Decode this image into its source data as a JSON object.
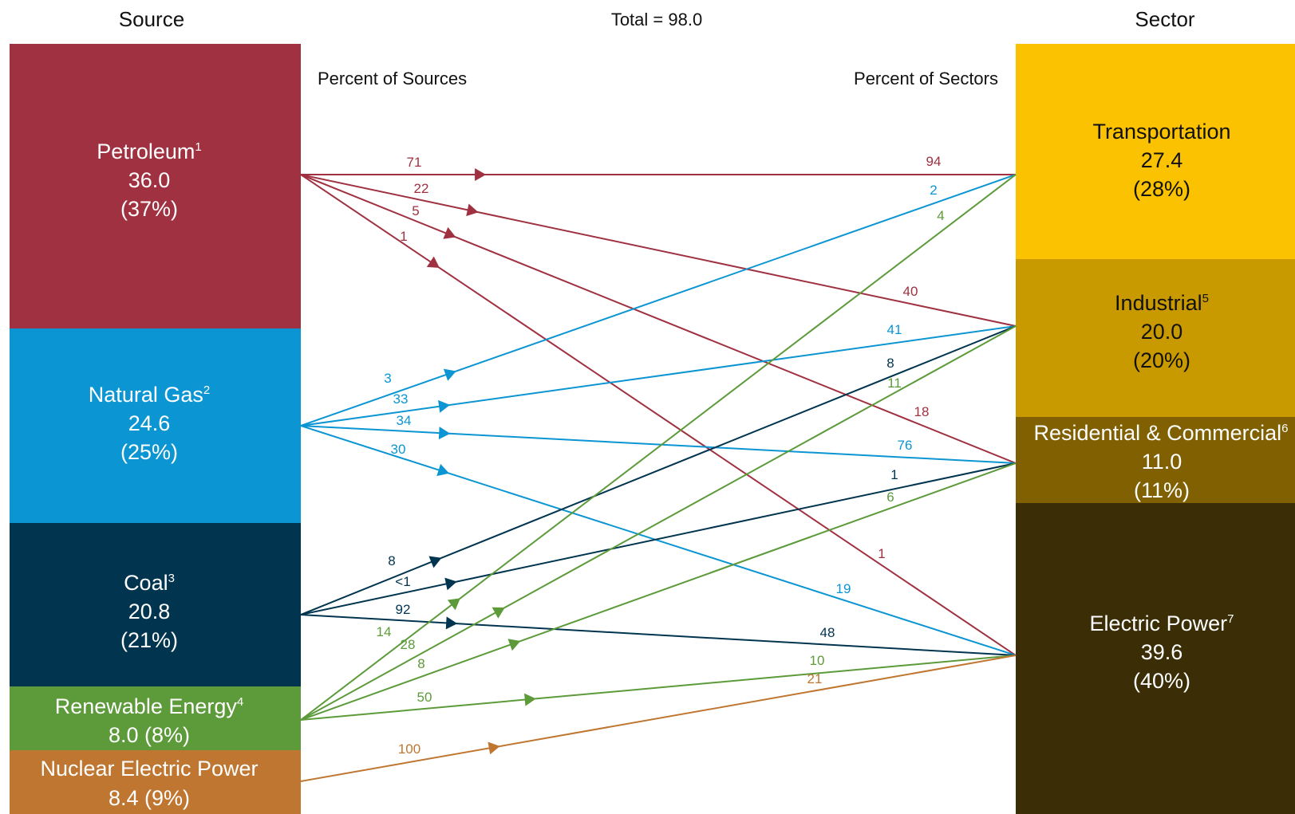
{
  "header": {
    "source_title": "Source",
    "total": "Total = 98.0",
    "sector_title": "Sector",
    "pct_sources": "Percent of Sources",
    "pct_sectors": "Percent of Sectors"
  },
  "colors": {
    "petroleum": "#a03141",
    "natural_gas": "#0b95d2",
    "coal": "#00344f",
    "renewable": "#5c9a3a",
    "nuclear": "#bf7630",
    "transportation": "#fac200",
    "industrial": "#c99a00",
    "residential_commercial": "#806000",
    "electric_power": "#3b2e06"
  },
  "sources": [
    {
      "id": "petroleum",
      "name": "Petroleum",
      "sup": "1",
      "value": "36.0",
      "pct": "(37%)"
    },
    {
      "id": "natural_gas",
      "name": "Natural Gas",
      "sup": "2",
      "value": "24.6",
      "pct": "(25%)"
    },
    {
      "id": "coal",
      "name": "Coal",
      "sup": "3",
      "value": "20.8",
      "pct": "(21%)"
    },
    {
      "id": "renewable",
      "name": "Renewable Energy",
      "sup": "4",
      "value_line": "8.0 (8%)"
    },
    {
      "id": "nuclear",
      "name": "Nuclear Electric Power",
      "sup": "",
      "value_line": "8.4 (9%)"
    }
  ],
  "sectors": [
    {
      "id": "transportation",
      "name": "Transportation",
      "sup": "",
      "value": "27.4",
      "pct": "(28%)"
    },
    {
      "id": "industrial",
      "name": "Industrial",
      "sup": "5",
      "value": "20.0",
      "pct": "(20%)"
    },
    {
      "id": "residential_commercial",
      "name": "Residential & Commercial",
      "sup": "6",
      "value": "11.0",
      "pct": "(11%)"
    },
    {
      "id": "electric_power",
      "name": "Electric Power",
      "sup": "7",
      "value": "39.6",
      "pct": "(40%)"
    }
  ],
  "flows": [
    {
      "source": "petroleum",
      "sector": "transportation",
      "src_label": "71",
      "sec_label": "94"
    },
    {
      "source": "petroleum",
      "sector": "industrial",
      "src_label": "22",
      "sec_label": "40"
    },
    {
      "source": "petroleum",
      "sector": "residential_commercial",
      "src_label": "5",
      "sec_label": "18"
    },
    {
      "source": "petroleum",
      "sector": "electric_power",
      "src_label": "1",
      "sec_label": "1"
    },
    {
      "source": "natural_gas",
      "sector": "transportation",
      "src_label": "3",
      "sec_label": "2"
    },
    {
      "source": "natural_gas",
      "sector": "industrial",
      "src_label": "33",
      "sec_label": "41"
    },
    {
      "source": "natural_gas",
      "sector": "residential_commercial",
      "src_label": "34",
      "sec_label": "76"
    },
    {
      "source": "natural_gas",
      "sector": "electric_power",
      "src_label": "30",
      "sec_label": "19"
    },
    {
      "source": "coal",
      "sector": "industrial",
      "src_label": "8",
      "sec_label": "8"
    },
    {
      "source": "coal",
      "sector": "residential_commercial",
      "src_label": "<1",
      "sec_label": "1"
    },
    {
      "source": "coal",
      "sector": "electric_power",
      "src_label": "92",
      "sec_label": "48"
    },
    {
      "source": "renewable",
      "sector": "transportation",
      "src_label": "14",
      "sec_label": "4"
    },
    {
      "source": "renewable",
      "sector": "industrial",
      "src_label": "28",
      "sec_label": "11"
    },
    {
      "source": "renewable",
      "sector": "residential_commercial",
      "src_label": "8",
      "sec_label": "6"
    },
    {
      "source": "renewable",
      "sector": "electric_power",
      "src_label": "50",
      "sec_label": "10"
    },
    {
      "source": "nuclear",
      "sector": "electric_power",
      "src_label": "100",
      "sec_label": "21"
    }
  ]
}
